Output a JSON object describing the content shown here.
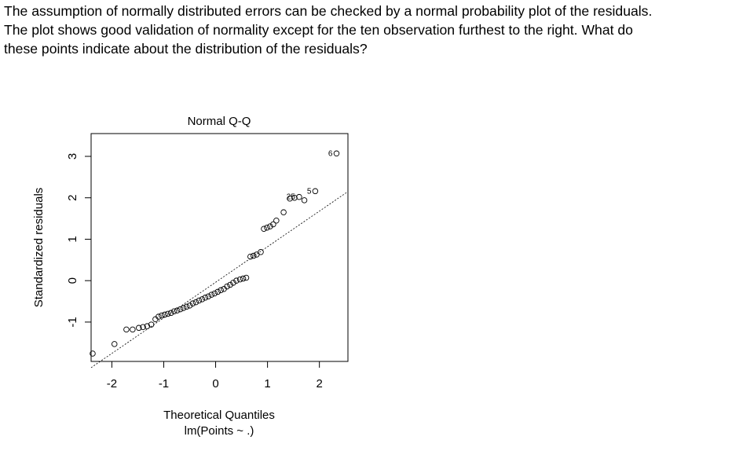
{
  "question": {
    "lines": [
      "The assumption of normally distributed errors can be checked by a normal probability plot of the residuals.",
      "The plot shows good validation of normality except for the ten observation furthest to the right. What do",
      "these points indicate about the distribution of the residuals?"
    ]
  },
  "chart_data": {
    "type": "scatter",
    "title": "Normal Q-Q",
    "xlabel": "Theoretical Quantiles",
    "xlabel2": "lm(Points ~ .)",
    "ylabel": "Standardized residuals",
    "xlim": [
      -2.4,
      2.55
    ],
    "ylim": [
      -1.95,
      3.55
    ],
    "x_ticks": [
      "-2",
      "-1",
      "0",
      "1",
      "2"
    ],
    "y_ticks": [
      "-1",
      "0",
      "1",
      "2",
      "3"
    ],
    "reference_line": {
      "style": "dashed",
      "from": [
        -2.4,
        -2.1
      ],
      "to": [
        2.55,
        2.15
      ]
    },
    "points": [
      {
        "x": -2.37,
        "y": -1.76
      },
      {
        "x": -1.95,
        "y": -1.53
      },
      {
        "x": -1.72,
        "y": -1.18
      },
      {
        "x": -1.6,
        "y": -1.18
      },
      {
        "x": -1.48,
        "y": -1.14
      },
      {
        "x": -1.4,
        "y": -1.12
      },
      {
        "x": -1.32,
        "y": -1.1
      },
      {
        "x": -1.24,
        "y": -1.06
      },
      {
        "x": -1.16,
        "y": -0.93
      },
      {
        "x": -1.1,
        "y": -0.87
      },
      {
        "x": -1.04,
        "y": -0.84
      },
      {
        "x": -0.98,
        "y": -0.82
      },
      {
        "x": -0.92,
        "y": -0.8
      },
      {
        "x": -0.86,
        "y": -0.78
      },
      {
        "x": -0.8,
        "y": -0.74
      },
      {
        "x": -0.74,
        "y": -0.72
      },
      {
        "x": -0.68,
        "y": -0.69
      },
      {
        "x": -0.62,
        "y": -0.66
      },
      {
        "x": -0.56,
        "y": -0.63
      },
      {
        "x": -0.5,
        "y": -0.6
      },
      {
        "x": -0.44,
        "y": -0.55
      },
      {
        "x": -0.38,
        "y": -0.52
      },
      {
        "x": -0.32,
        "y": -0.48
      },
      {
        "x": -0.26,
        "y": -0.45
      },
      {
        "x": -0.2,
        "y": -0.41
      },
      {
        "x": -0.14,
        "y": -0.38
      },
      {
        "x": -0.08,
        "y": -0.34
      },
      {
        "x": -0.02,
        "y": -0.31
      },
      {
        "x": 0.04,
        "y": -0.27
      },
      {
        "x": 0.1,
        "y": -0.23
      },
      {
        "x": 0.16,
        "y": -0.2
      },
      {
        "x": 0.22,
        "y": -0.14
      },
      {
        "x": 0.28,
        "y": -0.1
      },
      {
        "x": 0.34,
        "y": -0.05
      },
      {
        "x": 0.4,
        "y": 0.0
      },
      {
        "x": 0.47,
        "y": 0.03
      },
      {
        "x": 0.53,
        "y": 0.05
      },
      {
        "x": 0.59,
        "y": 0.07
      },
      {
        "x": 0.67,
        "y": 0.58
      },
      {
        "x": 0.73,
        "y": 0.6
      },
      {
        "x": 0.79,
        "y": 0.63
      },
      {
        "x": 0.87,
        "y": 0.69
      },
      {
        "x": 0.93,
        "y": 1.25
      },
      {
        "x": 0.99,
        "y": 1.28
      },
      {
        "x": 1.05,
        "y": 1.31
      },
      {
        "x": 1.11,
        "y": 1.36
      },
      {
        "x": 1.17,
        "y": 1.45
      },
      {
        "x": 1.31,
        "y": 1.65
      },
      {
        "x": 1.43,
        "y": 1.98
      },
      {
        "x": 1.52,
        "y": 2.0
      },
      {
        "x": 1.61,
        "y": 2.02,
        "label": "25"
      },
      {
        "x": 1.71,
        "y": 1.94
      },
      {
        "x": 1.92,
        "y": 2.16,
        "label": "5"
      },
      {
        "x": 2.33,
        "y": 3.07,
        "label": "6"
      }
    ]
  }
}
